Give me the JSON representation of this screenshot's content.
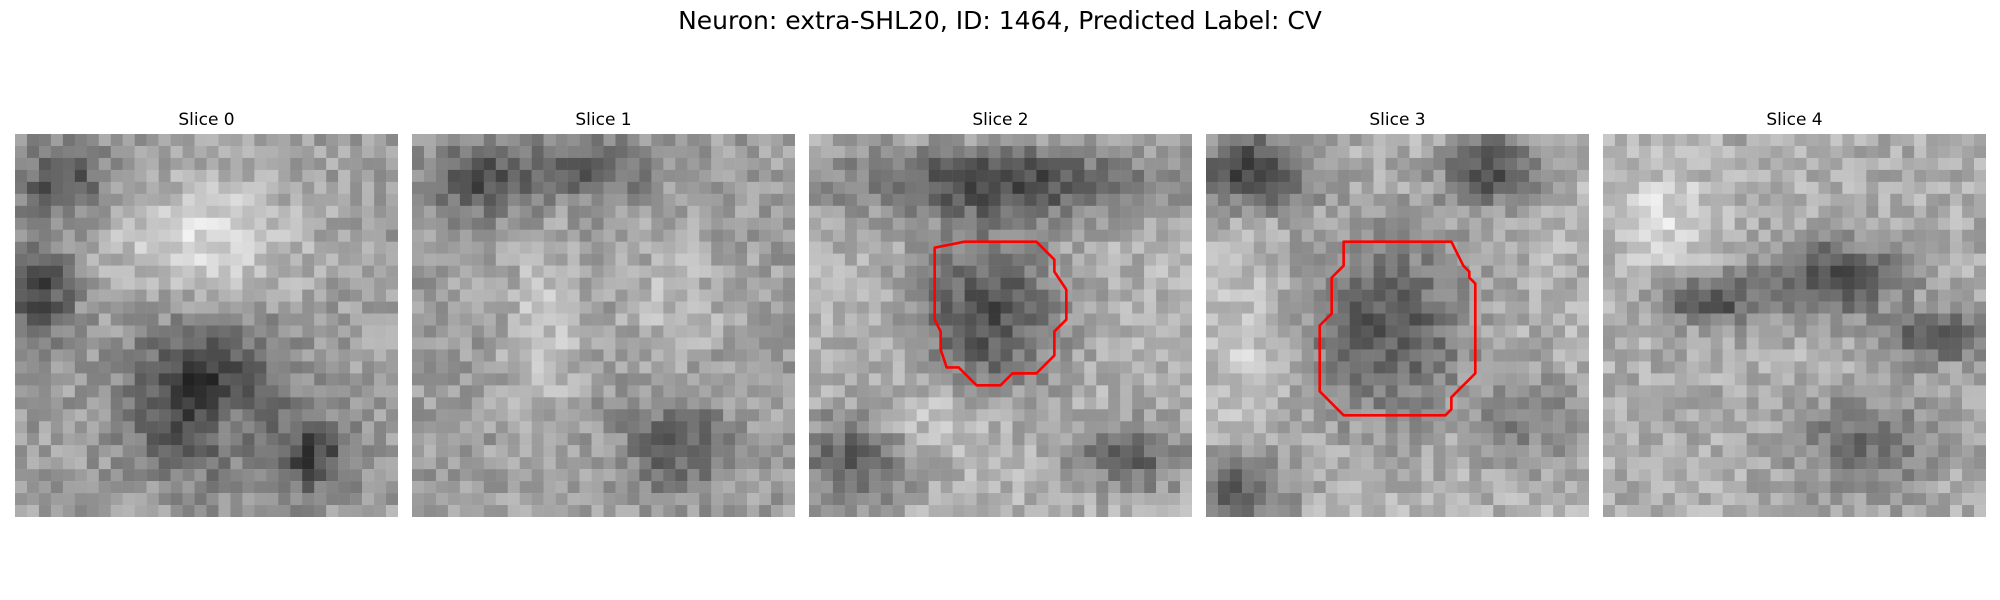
{
  "figure": {
    "title": "Neuron: extra-SHL20, ID: 1464, Predicted Label: CV",
    "contour_color": "#ff0000"
  },
  "panels": [
    {
      "title": "Slice 0",
      "has_contour": false
    },
    {
      "title": "Slice 1",
      "has_contour": false
    },
    {
      "title": "Slice 2",
      "has_contour": true
    },
    {
      "title": "Slice 3",
      "has_contour": true
    },
    {
      "title": "Slice 4",
      "has_contour": false
    }
  ]
}
